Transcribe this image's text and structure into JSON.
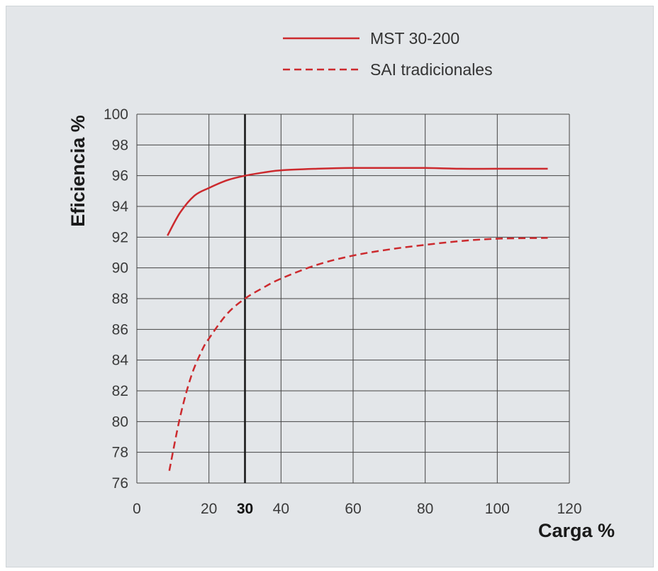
{
  "chart_data": {
    "type": "line",
    "xlabel": "Carga %",
    "ylabel": "Eficiencia %",
    "xlim": [
      0,
      120
    ],
    "ylim": [
      76,
      100
    ],
    "x_ticks": [
      0,
      20,
      30,
      40,
      60,
      80,
      100,
      120
    ],
    "x_tick_labels": [
      "0",
      "20",
      "30",
      "40",
      "60",
      "80",
      "100",
      "120"
    ],
    "highlight_x": 30,
    "y_ticks": [
      76,
      78,
      80,
      82,
      84,
      86,
      88,
      90,
      92,
      94,
      96,
      98,
      100
    ],
    "y_tick_labels": [
      "76",
      "78",
      "80",
      "82",
      "84",
      "86",
      "88",
      "90",
      "92",
      "94",
      "96",
      "98",
      "100"
    ],
    "grid": true,
    "legend_position": "top-right",
    "series": [
      {
        "name": "MST 30-200",
        "style": "solid",
        "color": "#cc2a2e",
        "points": [
          [
            8.5,
            92.1
          ],
          [
            12,
            93.6
          ],
          [
            16,
            94.7
          ],
          [
            20,
            95.2
          ],
          [
            25,
            95.7
          ],
          [
            30,
            96.0
          ],
          [
            35,
            96.2
          ],
          [
            40,
            96.35
          ],
          [
            50,
            96.45
          ],
          [
            60,
            96.5
          ],
          [
            70,
            96.5
          ],
          [
            80,
            96.5
          ],
          [
            90,
            96.45
          ],
          [
            100,
            96.45
          ],
          [
            114,
            96.45
          ]
        ]
      },
      {
        "name": "SAI tradicionales",
        "style": "dashed",
        "color": "#cc2a2e",
        "points": [
          [
            9,
            76.8
          ],
          [
            12,
            80.3
          ],
          [
            15,
            82.9
          ],
          [
            18,
            84.6
          ],
          [
            20,
            85.4
          ],
          [
            25,
            87.0
          ],
          [
            30,
            88.0
          ],
          [
            35,
            88.7
          ],
          [
            40,
            89.3
          ],
          [
            50,
            90.2
          ],
          [
            60,
            90.8
          ],
          [
            70,
            91.2
          ],
          [
            80,
            91.5
          ],
          [
            90,
            91.75
          ],
          [
            100,
            91.9
          ],
          [
            114,
            91.95
          ]
        ]
      }
    ]
  }
}
